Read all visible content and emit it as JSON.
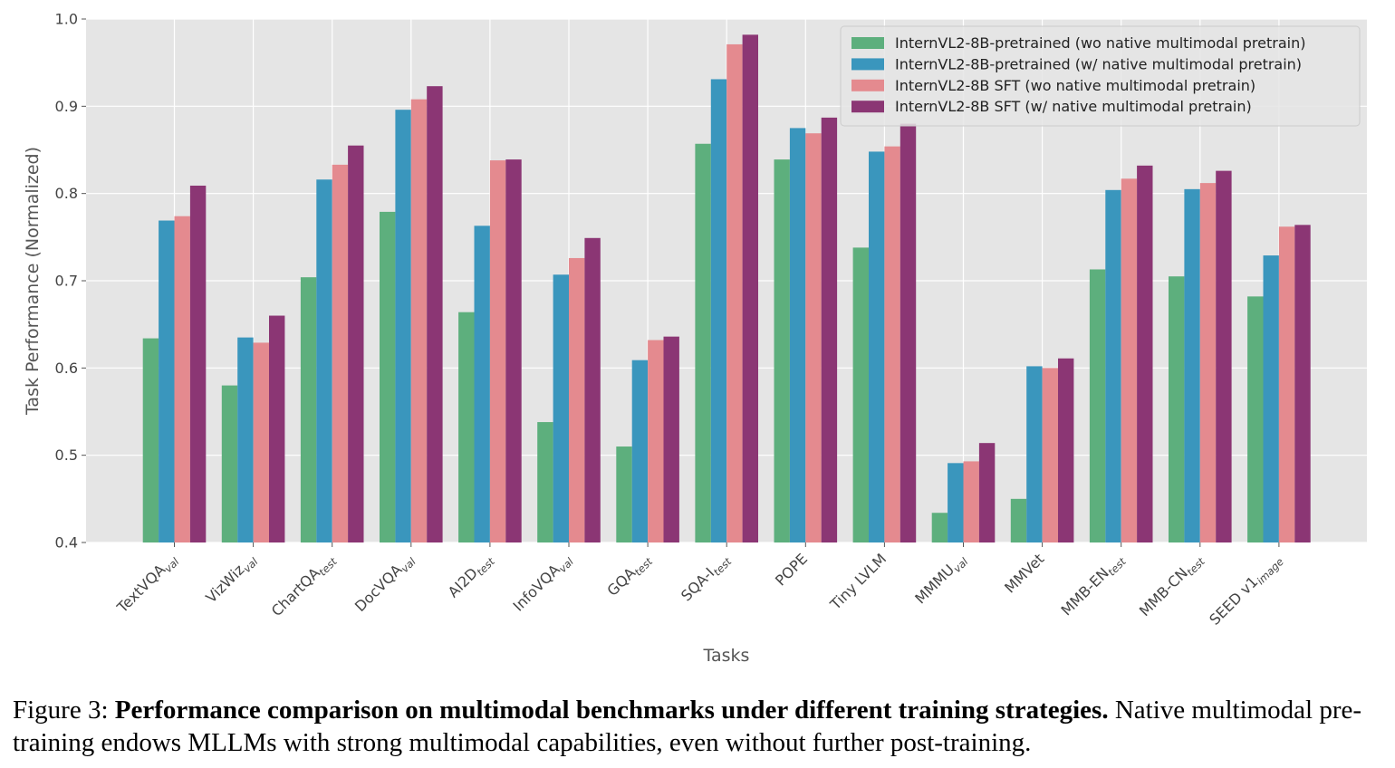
{
  "chart_data": {
    "type": "bar",
    "title": "",
    "xlabel": "Tasks",
    "ylabel": "Task Performance (Normalized)",
    "ylim": [
      0.4,
      1.0
    ],
    "yticks": [
      "0.4",
      "0.5",
      "0.6",
      "0.7",
      "0.8",
      "0.9",
      "1.0"
    ],
    "grid": true,
    "legend_position": "top-right",
    "categories": [
      {
        "base": "TextVQA",
        "sub": "val"
      },
      {
        "base": "VizWiz",
        "sub": "val"
      },
      {
        "base": "ChartQA",
        "sub": "test"
      },
      {
        "base": "DocVQA",
        "sub": "val"
      },
      {
        "base": "AI2D",
        "sub": "test"
      },
      {
        "base": "InfoVQA",
        "sub": "val"
      },
      {
        "base": "GQA",
        "sub": "test"
      },
      {
        "base": "SQA-I",
        "sub": "test"
      },
      {
        "base": "POPE",
        "sub": ""
      },
      {
        "base": "Tiny LVLM",
        "sub": ""
      },
      {
        "base": "MMMU",
        "sub": "val"
      },
      {
        "base": "MMVet",
        "sub": ""
      },
      {
        "base": "MMB-EN",
        "sub": "test"
      },
      {
        "base": "MMB-CN",
        "sub": "test"
      },
      {
        "base": "SEED v1",
        "sub": "image"
      }
    ],
    "series": [
      {
        "name": "InternVL2-8B-pretrained (wo native multimodal pretrain)",
        "color": "#5daf7d",
        "values": [
          0.634,
          0.58,
          0.704,
          0.779,
          0.664,
          0.538,
          0.51,
          0.857,
          0.839,
          0.738,
          0.434,
          0.45,
          0.713,
          0.705,
          0.682
        ]
      },
      {
        "name": "InternVL2-8B-pretrained (w/ native multimodal pretrain)",
        "color": "#3a96bd",
        "values": [
          0.769,
          0.635,
          0.816,
          0.896,
          0.763,
          0.707,
          0.609,
          0.931,
          0.875,
          0.848,
          0.491,
          0.602,
          0.804,
          0.805,
          0.729
        ]
      },
      {
        "name": "InternVL2-8B SFT (wo native multimodal pretrain)",
        "color": "#e48a8f",
        "values": [
          0.774,
          0.629,
          0.833,
          0.908,
          0.838,
          0.726,
          0.632,
          0.971,
          0.869,
          0.854,
          0.493,
          0.6,
          0.817,
          0.812,
          0.762
        ]
      },
      {
        "name": "InternVL2-8B SFT (w/ native multimodal pretrain)",
        "color": "#8b3674",
        "values": [
          0.809,
          0.66,
          0.855,
          0.923,
          0.839,
          0.749,
          0.636,
          0.982,
          0.887,
          0.88,
          0.514,
          0.611,
          0.832,
          0.826,
          0.764
        ]
      }
    ]
  },
  "caption": {
    "label": "Figure 3:",
    "bold": "Performance comparison on multimodal benchmarks under different training strategies.",
    "rest": "Native multimodal pre-training endows MLLMs with strong multimodal capabilities, even without further post-training."
  }
}
